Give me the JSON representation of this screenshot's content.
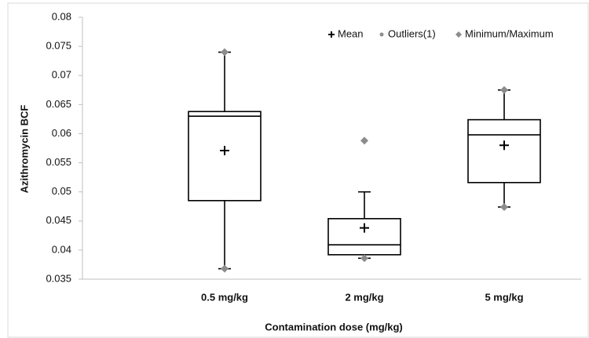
{
  "chart_data": {
    "type": "box",
    "y_label": "Azithromycin BCF",
    "x_label": "Contamination dose (mg/kg)",
    "categories": [
      "0.5 mg/kg",
      "2 mg/kg",
      "5 mg/kg"
    ],
    "legend": [
      "Mean",
      "Outliers(1)",
      "Minimum/Maximum"
    ],
    "box_color": "#000000",
    "marker_color": "#8c8c8c",
    "boxes": [
      {
        "low": 0.0368,
        "q1": 0.0485,
        "median": 0.063,
        "q3": 0.0638,
        "high": 0.074,
        "mean": 0.0571,
        "min": 0.0368,
        "max": 0.074
      },
      {
        "low": 0.0386,
        "q1": 0.0392,
        "median": 0.0409,
        "q3": 0.0454,
        "high": 0.05,
        "mean": 0.0438,
        "min": 0.0386,
        "max": 0.0588
      },
      {
        "low": 0.0474,
        "q1": 0.0516,
        "median": 0.0598,
        "q3": 0.0624,
        "high": 0.0675,
        "mean": 0.058,
        "min": 0.0474,
        "max": 0.0675
      }
    ],
    "ylim": [
      0.035,
      0.08
    ],
    "yticks": [
      0.035,
      0.04,
      0.045,
      0.05,
      0.055,
      0.06,
      0.065,
      0.07,
      0.075,
      0.08
    ],
    "grid": false
  }
}
